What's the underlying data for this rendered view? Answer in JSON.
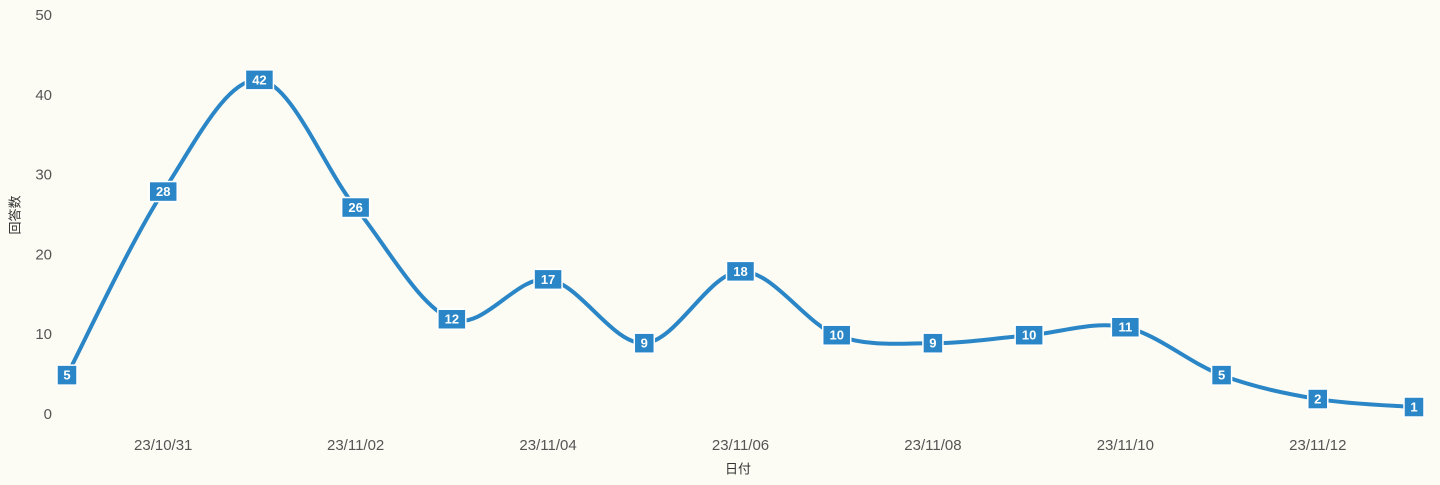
{
  "chart_data": {
    "type": "line",
    "x_label": "日付",
    "y_label": "回答数",
    "categories": [
      null,
      "23/10/31",
      null,
      "23/11/02",
      null,
      "23/11/04",
      null,
      "23/11/06",
      null,
      "23/11/08",
      null,
      "23/11/10",
      null,
      "23/11/12",
      null
    ],
    "series": [
      {
        "name": "回答数",
        "color": "#2a86c6",
        "values": [
          5,
          28,
          42,
          26,
          12,
          17,
          9,
          18,
          10,
          9,
          10,
          11,
          5,
          2,
          1
        ]
      }
    ],
    "ylim": [
      0,
      50
    ],
    "yticks": [
      0,
      10,
      20,
      30,
      40,
      50
    ],
    "data_labels": true
  }
}
